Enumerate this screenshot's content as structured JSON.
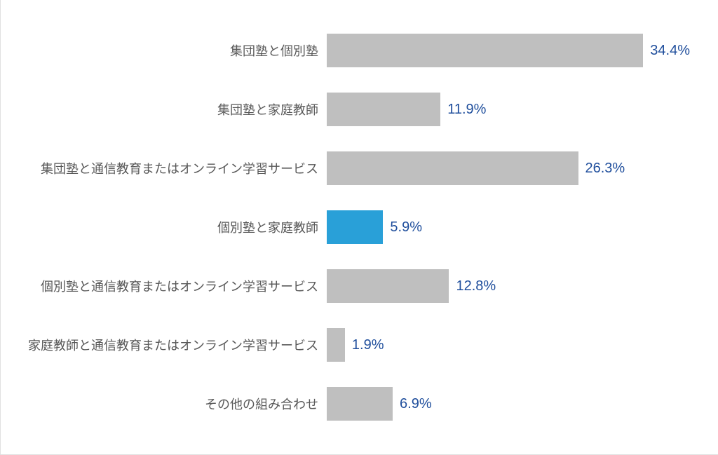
{
  "chart": {
    "type": "bar-horizontal",
    "max_value": 38,
    "bar_default_color": "#bfbfbf",
    "bar_highlight_color": "#29a0d8",
    "value_label_color": "#1f4e9c",
    "category_label_color": "#595959",
    "border_color": "#e0e0e0",
    "background_color": "#ffffff",
    "category_fontsize": 18,
    "value_fontsize": 20,
    "rows": [
      {
        "label": "集団塾と個別塾",
        "value": 34.4,
        "display": "34.4%",
        "highlight": false
      },
      {
        "label": "集団塾と家庭教師",
        "value": 11.9,
        "display": "11.9%",
        "highlight": false
      },
      {
        "label": "集団塾と通信教育またはオンライン学習サービス",
        "value": 26.3,
        "display": "26.3%",
        "highlight": false
      },
      {
        "label": "個別塾と家庭教師",
        "value": 5.9,
        "display": "5.9%",
        "highlight": true
      },
      {
        "label": "個別塾と通信教育またはオンライン学習サービス",
        "value": 12.8,
        "display": "12.8%",
        "highlight": false
      },
      {
        "label": "家庭教師と通信教育またはオンライン学習サービス",
        "value": 1.9,
        "display": "1.9%",
        "highlight": false
      },
      {
        "label": "その他の組み合わせ",
        "value": 6.9,
        "display": "6.9%",
        "highlight": false
      }
    ]
  }
}
